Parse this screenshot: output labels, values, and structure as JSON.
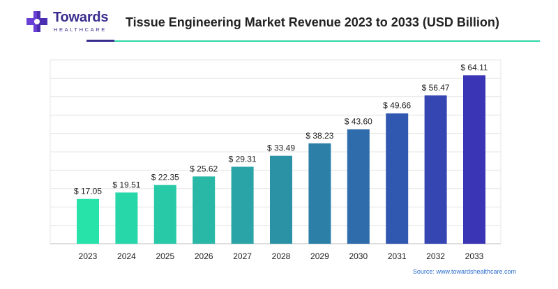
{
  "brand": {
    "name": "Towards",
    "tagline": "HEALTHCARE",
    "colors": {
      "primary": "#3a2d8f",
      "accent": "#2ed6a6",
      "link": "#2a6bd0"
    },
    "icon": "medical-cross-icon"
  },
  "chart_data": {
    "type": "bar",
    "title": "Tissue Engineering Market Revenue 2023 to 2033 (USD Billion)",
    "xlabel": "",
    "ylabel": "",
    "categories": [
      "2023",
      "2024",
      "2025",
      "2026",
      "2027",
      "2028",
      "2029",
      "2030",
      "2031",
      "2032",
      "2033"
    ],
    "values": [
      17.05,
      19.51,
      22.35,
      25.62,
      29.31,
      33.49,
      38.23,
      43.6,
      49.66,
      56.47,
      64.11
    ],
    "labels": [
      "$ 17.05",
      "$ 19.51",
      "$ 22.35",
      "$ 25.62",
      "$ 29.31",
      "$ 33.49",
      "$ 38.23",
      "$ 43.60",
      "$ 49.66",
      "$ 56.47",
      "$ 64.11"
    ],
    "ylim": [
      0,
      70
    ],
    "grid": true,
    "bar_colors": [
      "#27e3aa",
      "#27d7a9",
      "#28c9a7",
      "#29b7a6",
      "#2aa4a6",
      "#2b92a6",
      "#2c80a8",
      "#2e6cab",
      "#3158b0",
      "#3546b3",
      "#3a35b4"
    ]
  },
  "source": "Source: www.towardshealthcare.com"
}
